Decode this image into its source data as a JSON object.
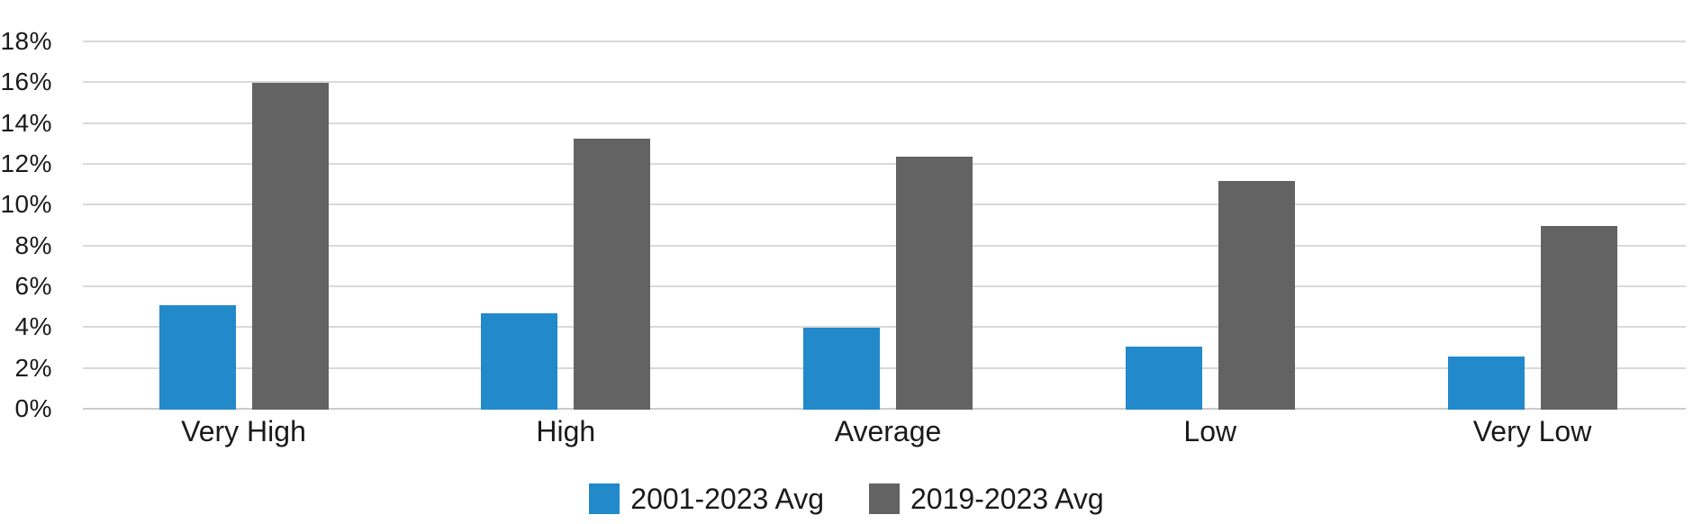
{
  "chart_data": {
    "type": "bar",
    "title": "",
    "categories": [
      "Very High",
      "High",
      "Average",
      "Low",
      "Very Low"
    ],
    "series": [
      {
        "name": "2001-2023 Avg",
        "color": "#2289CB",
        "values": [
          5.1,
          4.7,
          4.0,
          3.1,
          2.6
        ]
      },
      {
        "name": "2019-2023 Avg",
        "color": "#636363",
        "values": [
          16.0,
          13.3,
          12.4,
          11.2,
          9.0
        ]
      }
    ],
    "xlabel": "",
    "ylabel": "",
    "ylim": [
      0,
      18
    ],
    "ytick_step": 2,
    "ytick_suffix": "%",
    "grid": true,
    "legend_position": "bottom",
    "colors": {
      "gridline": "#D9D9D9",
      "baseline": "#CBCBCB",
      "text": "#1A1A1A",
      "background": "#FFFFFF"
    }
  }
}
